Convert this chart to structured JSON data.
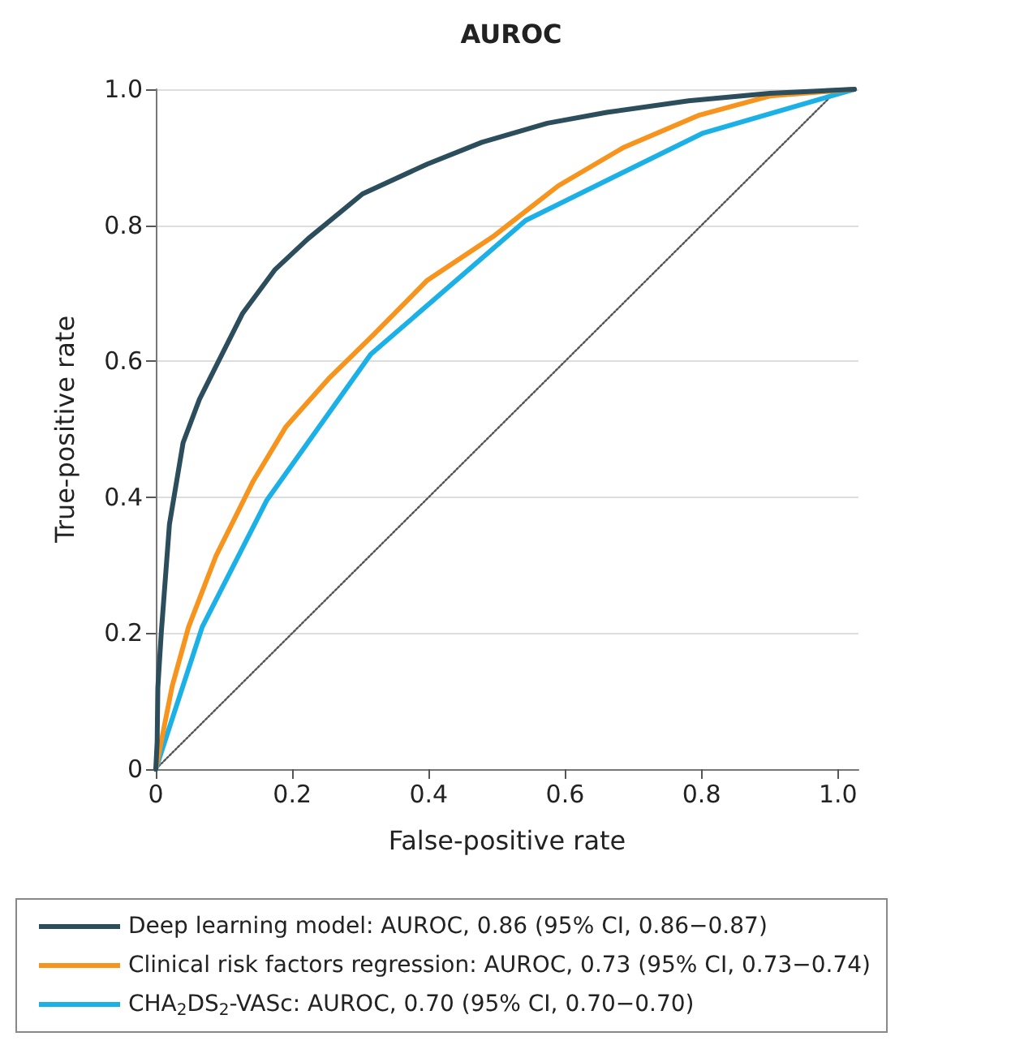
{
  "chart_data": {
    "type": "line",
    "title": "AUROC",
    "xlabel": "False-positive rate",
    "ylabel": "True-positive rate",
    "xlim": [
      0,
      1.03
    ],
    "ylim": [
      0,
      1
    ],
    "xticks": [
      0,
      0.2,
      0.4,
      0.6,
      0.8,
      {
        "value": 1,
        "label": "1.0"
      }
    ],
    "yticks": [
      0,
      0.2,
      0.4,
      0.6,
      0.8,
      {
        "value": 1,
        "label": "1.0"
      }
    ],
    "grid": "y",
    "legend": "bottom",
    "marker": "none",
    "series": [
      {
        "name": "Deep learning model: AUROC, 0.86 (95% CI, 0.86−0.87)",
        "color": "#2b4d5c",
        "x": [
          0,
          0.002,
          0.003,
          0.008,
          0.02,
          0.04,
          0.064,
          0.092,
          0.127,
          0.175,
          0.223,
          0.303,
          0.398,
          0.478,
          0.574,
          0.661,
          0.781,
          0.9,
          1.024
        ],
        "values": [
          0,
          0.04,
          0.12,
          0.2,
          0.36,
          0.48,
          0.544,
          0.6,
          0.67,
          0.735,
          0.78,
          0.846,
          0.89,
          0.922,
          0.95,
          0.966,
          0.983,
          0.994,
          1.0
        ]
      },
      {
        "name": "Clinical risk factors regression: AUROC, 0.73 (95% CI, 0.73−0.74)",
        "color": "#f7941d",
        "x": [
          0,
          0.024,
          0.048,
          0.088,
          0.143,
          0.191,
          0.255,
          0.319,
          0.398,
          0.494,
          0.59,
          0.685,
          0.797,
          0.9,
          1.024
        ],
        "values": [
          0,
          0.122,
          0.209,
          0.313,
          0.424,
          0.504,
          0.576,
          0.639,
          0.719,
          0.783,
          0.858,
          0.914,
          0.962,
          0.99,
          1.0
        ]
      },
      {
        "name": "CHA$_{2}$DS$_{2}$-VASc: AUROC, 0.70 (95% CI, 0.70−0.70)",
        "color": "#1bb1e7",
        "x": [
          0,
          0.068,
          0.163,
          0.315,
          0.542,
          0.801,
          1.024
        ],
        "values": [
          0,
          0.209,
          0.396,
          0.61,
          0.807,
          0.935,
          1.0
        ]
      },
      {
        "color": "#555555",
        "line_style": "dotted",
        "x": [
          0,
          1
        ],
        "values": [
          0,
          1
        ]
      }
    ]
  }
}
